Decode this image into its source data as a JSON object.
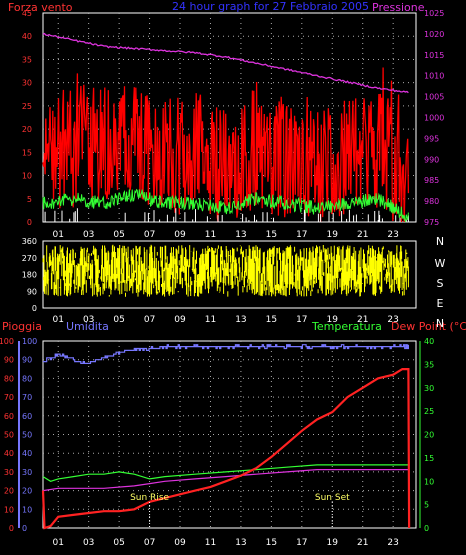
{
  "chart_data": [
    {
      "type": "line",
      "panel": "wind-pressure",
      "title": "24 hour graph for  27 Febbraio 2005",
      "left_label": "Forza vento",
      "right_label": "Pressione",
      "x_ticks": [
        "01",
        "03",
        "05",
        "07",
        "09",
        "11",
        "13",
        "15",
        "17",
        "19",
        "21",
        "23"
      ],
      "y_left_ticks": [
        0,
        5,
        10,
        15,
        20,
        25,
        30,
        35,
        40,
        45
      ],
      "ylim_left": [
        0,
        45
      ],
      "y_right_ticks": [
        975,
        980,
        985,
        990,
        995,
        1000,
        1005,
        1010,
        1015,
        1020,
        1025
      ],
      "ylim_right": [
        975,
        1025
      ],
      "grid": true,
      "series": [
        {
          "role": "gust",
          "color": "#ff0000",
          "x": [
            0,
            2,
            4,
            6,
            8,
            10,
            12,
            14,
            16,
            18,
            20,
            22,
            24
          ],
          "y": [
            14,
            16,
            18,
            17,
            14,
            15,
            12,
            16,
            13,
            12,
            14,
            16,
            10
          ]
        },
        {
          "role": "average",
          "color": "#33ff33",
          "x": [
            0,
            2,
            4,
            6,
            8,
            10,
            12,
            14,
            16,
            18,
            20,
            22,
            24
          ],
          "y": [
            4,
            5,
            4,
            6,
            4,
            4,
            3,
            5,
            4,
            3,
            4,
            5,
            1
          ]
        },
        {
          "role": "pressure",
          "color": "#dd33dd",
          "axis": "right",
          "x": [
            0,
            2,
            4,
            6,
            8,
            10,
            12,
            14,
            16,
            18,
            20,
            22,
            24
          ],
          "y": [
            1020,
            1018.5,
            1017,
            1016.5,
            1016,
            1015.5,
            1014.5,
            1013,
            1011.5,
            1010,
            1008.5,
            1007,
            1006
          ]
        }
      ]
    },
    {
      "type": "scatter",
      "panel": "wind-direction",
      "x_ticks": [
        "01",
        "03",
        "05",
        "07",
        "09",
        "11",
        "13",
        "15",
        "17",
        "19",
        "21",
        "23"
      ],
      "y_ticks": [
        0,
        90,
        180,
        270,
        360
      ],
      "ylim": [
        0,
        360
      ],
      "compass_labels": [
        "N",
        "W",
        "S",
        "E",
        "N"
      ],
      "series": [
        {
          "role": "direction",
          "color": "#ffff00",
          "band": [
            60,
            340
          ]
        }
      ]
    },
    {
      "type": "line",
      "panel": "rain-humidity-temperature",
      "labels": {
        "rain": "Pioggia",
        "humidity": "Umidita",
        "temperature": "Temperatura",
        "dewpoint": "Dew Point (°C)"
      },
      "x_ticks": [
        "01",
        "03",
        "05",
        "07",
        "09",
        "11",
        "13",
        "15",
        "17",
        "19",
        "21",
        "23"
      ],
      "y_rain_ticks": [
        0,
        10,
        20,
        30,
        40,
        50,
        60,
        70,
        80,
        90,
        100
      ],
      "ylim_rain": [
        0,
        100
      ],
      "y_humidity_ticks": [
        0,
        10,
        20,
        30,
        40,
        50,
        60,
        70,
        80,
        90,
        100
      ],
      "ylim_humidity": [
        0,
        100
      ],
      "y_temp_ticks": [
        0,
        5,
        10,
        15,
        20,
        25,
        30,
        35,
        40
      ],
      "ylim_temp": [
        0,
        40
      ],
      "annotations": [
        {
          "text": "Sun Rise",
          "x": 7
        },
        {
          "text": "Sun Set",
          "x": 19
        }
      ],
      "grid": true,
      "series": [
        {
          "role": "humidity",
          "color": "#7777ff",
          "axis": "humidity",
          "x": [
            0,
            1,
            2,
            3,
            4,
            5,
            6,
            7,
            8,
            10,
            12,
            14,
            16,
            18,
            20,
            22,
            24
          ],
          "y": [
            89,
            93,
            90,
            88,
            91,
            94,
            96,
            96,
            97,
            97,
            97,
            97,
            97,
            97,
            97,
            97,
            97
          ]
        },
        {
          "role": "rain",
          "color": "#ff2222",
          "axis": "rain",
          "x": [
            0,
            0.1,
            0.5,
            1,
            2,
            3,
            4,
            5,
            6,
            7,
            8,
            9,
            10,
            11,
            12,
            13,
            14,
            15,
            16,
            17,
            18,
            19,
            20,
            21,
            22,
            23,
            23.6,
            24,
            24.05
          ],
          "y": [
            20,
            0,
            1,
            6,
            7,
            8,
            9,
            9,
            10,
            14,
            16,
            18,
            20,
            22,
            25,
            28,
            32,
            38,
            45,
            52,
            58,
            62,
            70,
            75,
            80,
            82,
            85,
            85,
            0
          ]
        },
        {
          "role": "temperature",
          "color": "#33ff33",
          "axis": "temp",
          "x": [
            0,
            0.5,
            1,
            2,
            3,
            4,
            5,
            6,
            7,
            8,
            10,
            12,
            14,
            16,
            18,
            20,
            22,
            24
          ],
          "y": [
            11,
            10,
            10.5,
            11,
            11.5,
            11.5,
            12,
            11.5,
            10.5,
            11,
            11.5,
            12,
            12.5,
            13,
            13.5,
            13.5,
            13.5,
            13.5
          ]
        },
        {
          "role": "dewpoint",
          "color": "#dd33dd",
          "axis": "temp",
          "x": [
            0,
            1,
            2,
            4,
            6,
            7,
            8,
            10,
            12,
            14,
            16,
            18,
            20,
            22,
            24
          ],
          "y": [
            8,
            8.5,
            8.5,
            8.5,
            9,
            9.5,
            10,
            10.5,
            11,
            11.5,
            12,
            12.5,
            12.5,
            12.5,
            12.5
          ]
        }
      ]
    }
  ]
}
